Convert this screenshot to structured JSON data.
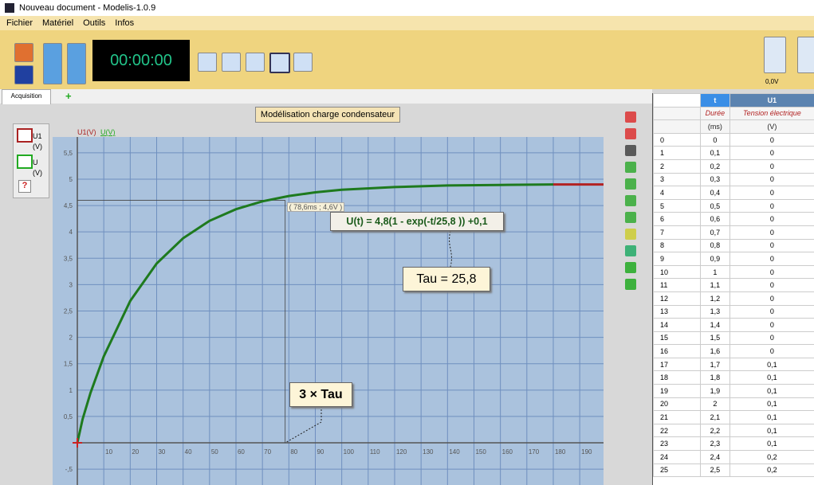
{
  "window_title": "Nouveau document - Modelis-1.0.9",
  "menu": [
    "Fichier",
    "Matériel",
    "Outils",
    "Infos"
  ],
  "toolbar": {
    "timer": "00:00:00",
    "meter_label": "0,0V"
  },
  "tabs": [
    "Acquisition"
  ],
  "legend_panel": {
    "items": [
      {
        "name": "U1",
        "unit": "(V)"
      },
      {
        "name": "U",
        "unit": "(V)"
      }
    ],
    "help": "?"
  },
  "graph": {
    "title": "Modélisation charge condensateur",
    "y_label": "U1(V)",
    "y_label_2": "U(V)",
    "xlim": [
      0,
      199
    ],
    "ylim": [
      -0.8,
      5.8
    ],
    "xticks": [
      10,
      20,
      30,
      40,
      50,
      60,
      70,
      80,
      90,
      100,
      110,
      120,
      130,
      140,
      150,
      160,
      170,
      180,
      190
    ],
    "yticks": [
      {
        "value": 5.5,
        "label": "5,5"
      },
      5,
      {
        "value": 4.5,
        "label": "4,5"
      },
      4,
      {
        "value": 3.5,
        "label": "3,5"
      },
      3,
      {
        "value": 2.5,
        "label": "2,5"
      },
      2,
      {
        "value": 1.5,
        "label": "1,5"
      },
      1,
      {
        "value": 0.5,
        "label": "0,5"
      },
      {
        "value": -0.5,
        "label": "-,5"
      }
    ],
    "grid": true,
    "series": [
      {
        "name": "U",
        "color": "#1e7a1e",
        "x": [
          0,
          2,
          5,
          10,
          20,
          30,
          40,
          50,
          60,
          70,
          80,
          90,
          100,
          120,
          140,
          160,
          180
        ],
        "values": [
          0,
          0.45,
          0.95,
          1.64,
          2.69,
          3.4,
          3.88,
          4.21,
          4.43,
          4.58,
          4.68,
          4.75,
          4.8,
          4.85,
          4.88,
          4.89,
          4.9
        ]
      },
      {
        "name": "U1",
        "color": "#b22222",
        "x": [
          180,
          199
        ],
        "values": [
          4.9,
          4.9
        ]
      }
    ],
    "crosshair": {
      "x": 78.6,
      "y": 4.6,
      "label": "( 78,6ms ; 4,6V )"
    },
    "annotations": {
      "formula": "U(t) = 4,8(1 - exp(-t/25,8 )) +0,1",
      "tau": "Tau = 25,8",
      "three_tau": "3 × Tau"
    }
  },
  "table": {
    "headers": [
      "t",
      "U1"
    ],
    "descriptions": [
      "Durée",
      "Tension électrique"
    ],
    "units": [
      "(ms)",
      "(V)"
    ],
    "rows": [
      [
        "0",
        "0",
        "0"
      ],
      [
        "1",
        "0,1",
        "0"
      ],
      [
        "2",
        "0,2",
        "0"
      ],
      [
        "3",
        "0,3",
        "0"
      ],
      [
        "4",
        "0,4",
        "0"
      ],
      [
        "5",
        "0,5",
        "0"
      ],
      [
        "6",
        "0,6",
        "0"
      ],
      [
        "7",
        "0,7",
        "0"
      ],
      [
        "8",
        "0,8",
        "0"
      ],
      [
        "9",
        "0,9",
        "0"
      ],
      [
        "10",
        "1",
        "0"
      ],
      [
        "11",
        "1,1",
        "0"
      ],
      [
        "12",
        "1,2",
        "0"
      ],
      [
        "13",
        "1,3",
        "0"
      ],
      [
        "14",
        "1,4",
        "0"
      ],
      [
        "15",
        "1,5",
        "0"
      ],
      [
        "16",
        "1,6",
        "0"
      ],
      [
        "17",
        "1,7",
        "0,1"
      ],
      [
        "18",
        "1,8",
        "0,1"
      ],
      [
        "19",
        "1,9",
        "0,1"
      ],
      [
        "20",
        "2",
        "0,1"
      ],
      [
        "21",
        "2,1",
        "0,1"
      ],
      [
        "22",
        "2,2",
        "0,1"
      ],
      [
        "23",
        "2,3",
        "0,1"
      ],
      [
        "24",
        "2,4",
        "0,2"
      ],
      [
        "25",
        "2,5",
        "0,2"
      ]
    ]
  }
}
